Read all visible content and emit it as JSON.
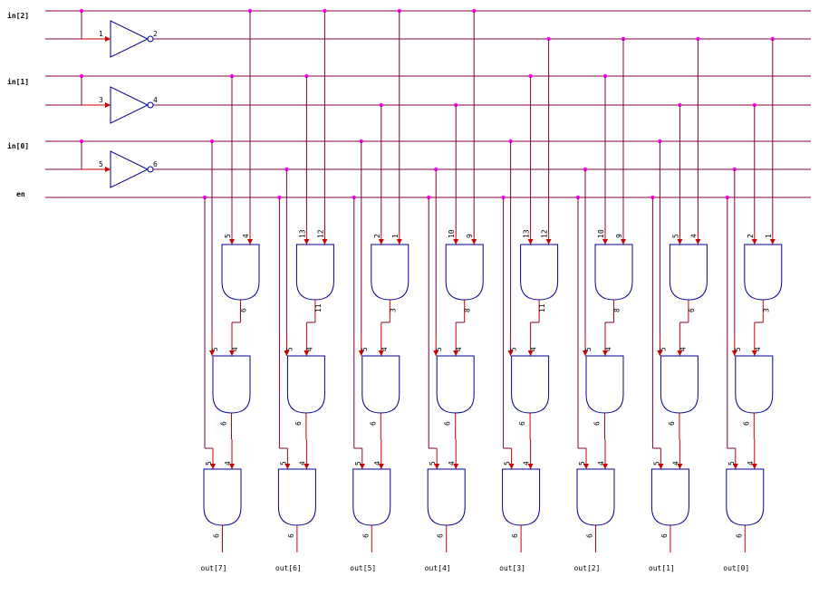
{
  "inputs": [
    "in[2]",
    "in[1]",
    "in[0]",
    "en"
  ],
  "inverters": [
    {
      "in_pin": "1",
      "out_pin": "2"
    },
    {
      "in_pin": "3",
      "out_pin": "4"
    },
    {
      "in_pin": "5",
      "out_pin": "6"
    }
  ],
  "columns": [
    {
      "output": "out[7]",
      "g1": [
        "5",
        "4",
        "6"
      ],
      "g2": [
        "5",
        "4",
        "6"
      ],
      "g3": [
        "5",
        "4",
        "6"
      ]
    },
    {
      "output": "out[6]",
      "g1": [
        "13",
        "12",
        "11"
      ],
      "g2": [
        "5",
        "4",
        "6"
      ],
      "g3": [
        "5",
        "4",
        "6"
      ]
    },
    {
      "output": "out[5]",
      "g1": [
        "2",
        "1",
        "3"
      ],
      "g2": [
        "5",
        "4",
        "6"
      ],
      "g3": [
        "5",
        "4",
        "6"
      ]
    },
    {
      "output": "out[4]",
      "g1": [
        "10",
        "9",
        "8"
      ],
      "g2": [
        "5",
        "4",
        "6"
      ],
      "g3": [
        "5",
        "4",
        "6"
      ]
    },
    {
      "output": "out[3]",
      "g1": [
        "13",
        "12",
        "11"
      ],
      "g2": [
        "5",
        "4",
        "6"
      ],
      "g3": [
        "5",
        "4",
        "6"
      ]
    },
    {
      "output": "out[2]",
      "g1": [
        "10",
        "9",
        "8"
      ],
      "g2": [
        "5",
        "4",
        "6"
      ],
      "g3": [
        "5",
        "4",
        "6"
      ]
    },
    {
      "output": "out[1]",
      "g1": [
        "5",
        "4",
        "6"
      ],
      "g2": [
        "5",
        "4",
        "6"
      ],
      "g3": [
        "5",
        "4",
        "6"
      ]
    },
    {
      "output": "out[0]",
      "g1": [
        "2",
        "1",
        "3"
      ],
      "g2": [
        "5",
        "4",
        "6"
      ],
      "g3": [
        "5",
        "4",
        "6"
      ]
    }
  ],
  "colors": {
    "wire": "#800040",
    "inner_wire": "#cc0000",
    "gate": "#000099",
    "junction": "#ff00ff"
  }
}
